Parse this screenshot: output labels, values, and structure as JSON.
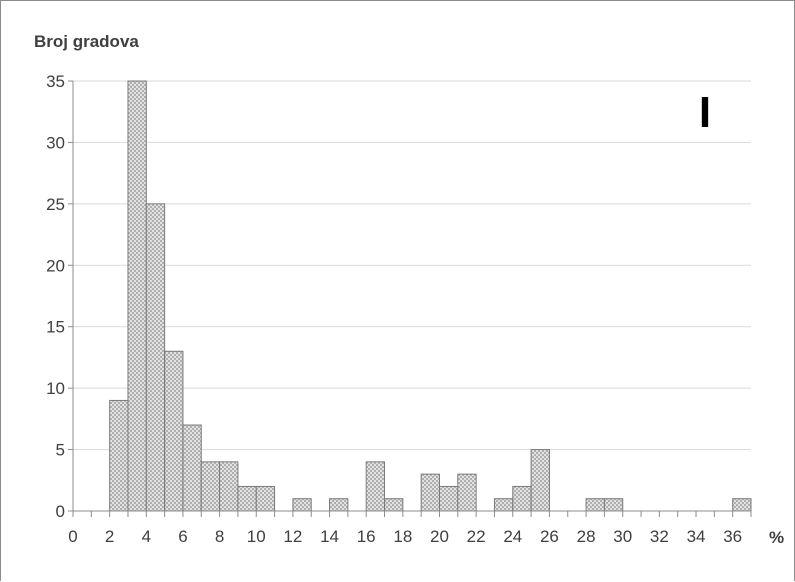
{
  "chart_data": {
    "type": "bar",
    "title": "Broj gradova",
    "xlabel": "%",
    "ylabel": "",
    "panel_label": "I",
    "xlim": [
      0,
      37
    ],
    "ylim": [
      0,
      35
    ],
    "x_ticks": [
      0,
      2,
      4,
      6,
      8,
      10,
      12,
      14,
      16,
      18,
      20,
      22,
      24,
      26,
      28,
      30,
      32,
      34,
      36
    ],
    "y_ticks": [
      0,
      5,
      10,
      15,
      20,
      25,
      30,
      35
    ],
    "bin_width": 1,
    "bins": [
      {
        "start": 2,
        "value": 9
      },
      {
        "start": 3,
        "value": 35
      },
      {
        "start": 4,
        "value": 25
      },
      {
        "start": 5,
        "value": 13
      },
      {
        "start": 6,
        "value": 7
      },
      {
        "start": 7,
        "value": 4
      },
      {
        "start": 8,
        "value": 4
      },
      {
        "start": 9,
        "value": 2
      },
      {
        "start": 10,
        "value": 2
      },
      {
        "start": 12,
        "value": 1
      },
      {
        "start": 14,
        "value": 1
      },
      {
        "start": 16,
        "value": 4
      },
      {
        "start": 17,
        "value": 1
      },
      {
        "start": 19,
        "value": 3
      },
      {
        "start": 20,
        "value": 2
      },
      {
        "start": 21,
        "value": 3
      },
      {
        "start": 23,
        "value": 1
      },
      {
        "start": 24,
        "value": 2
      },
      {
        "start": 25,
        "value": 5
      },
      {
        "start": 28,
        "value": 1
      },
      {
        "start": 29,
        "value": 1
      },
      {
        "start": 36,
        "value": 1
      }
    ],
    "grid": true,
    "colors": {
      "bar_fill": "#ececec",
      "bar_hatch": "#9a9a9a",
      "bar_edge": "#7a7a7a",
      "grid": "#d9d9d9",
      "axis": "#8c8c8c",
      "text": "#404040"
    }
  }
}
